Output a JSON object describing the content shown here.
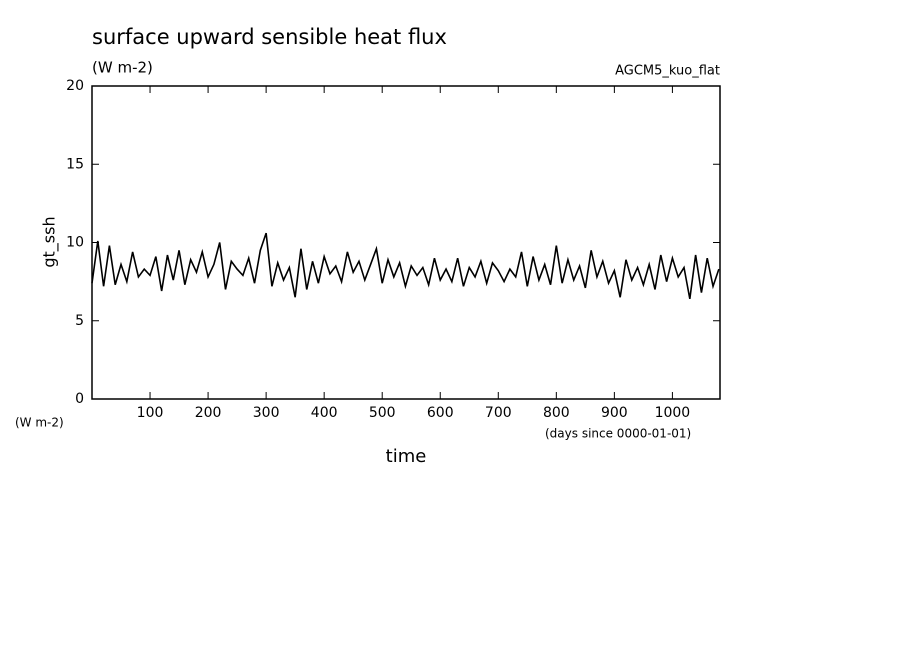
{
  "chart_data": {
    "type": "line",
    "title": "surface upward sensible heat flux",
    "subtitle": "(W m-2)",
    "annotation": "AGCM5_kuo_flat",
    "ylabel": "gt_ssh",
    "yunits": "(W m-2)",
    "xlabel": "time",
    "xunits": "(days since 0000-01-01)",
    "x": [
      0,
      10,
      20,
      30,
      40,
      50,
      60,
      70,
      80,
      90,
      100,
      110,
      120,
      130,
      140,
      150,
      160,
      170,
      180,
      190,
      200,
      210,
      220,
      230,
      240,
      250,
      260,
      270,
      280,
      290,
      300,
      310,
      320,
      330,
      340,
      350,
      360,
      370,
      380,
      390,
      400,
      410,
      420,
      430,
      440,
      450,
      460,
      470,
      480,
      490,
      500,
      510,
      520,
      530,
      540,
      550,
      560,
      570,
      580,
      590,
      600,
      610,
      620,
      630,
      640,
      650,
      660,
      670,
      680,
      690,
      700,
      710,
      720,
      730,
      740,
      750,
      760,
      770,
      780,
      790,
      800,
      810,
      820,
      830,
      840,
      850,
      860,
      870,
      880,
      890,
      900,
      910,
      920,
      930,
      940,
      950,
      960,
      970,
      980,
      990,
      1000,
      1010,
      1020,
      1030,
      1040,
      1050,
      1060,
      1070,
      1080
    ],
    "values": [
      7.4,
      10.1,
      7.2,
      9.8,
      7.3,
      8.6,
      7.5,
      9.4,
      7.8,
      8.3,
      7.9,
      9.1,
      6.9,
      9.2,
      7.6,
      9.5,
      7.3,
      8.9,
      8.1,
      9.4,
      7.8,
      8.6,
      10.0,
      7.0,
      8.8,
      8.3,
      7.9,
      9.0,
      7.4,
      9.5,
      10.6,
      7.2,
      8.7,
      7.6,
      8.4,
      6.5,
      9.6,
      7.0,
      8.8,
      7.4,
      9.1,
      8.0,
      8.5,
      7.5,
      9.4,
      8.1,
      8.8,
      7.6,
      8.6,
      9.6,
      7.4,
      8.9,
      7.8,
      8.7,
      7.2,
      8.5,
      7.9,
      8.4,
      7.3,
      9.0,
      7.6,
      8.3,
      7.5,
      9.0,
      7.2,
      8.4,
      7.8,
      8.8,
      7.4,
      8.7,
      8.2,
      7.5,
      8.3,
      7.8,
      9.4,
      7.2,
      9.1,
      7.6,
      8.6,
      7.3,
      9.8,
      7.4,
      8.9,
      7.6,
      8.5,
      7.1,
      9.5,
      7.8,
      8.8,
      7.4,
      8.2,
      6.5,
      8.9,
      7.6,
      8.4,
      7.3,
      8.6,
      7.0,
      9.2,
      7.5,
      9.0,
      7.8,
      8.4,
      6.4,
      9.2,
      6.8,
      9.0,
      7.2,
      8.3
    ],
    "color": "#000000",
    "xlim": [
      0,
      1082
    ],
    "ylim": [
      0,
      20
    ],
    "xticks": [
      100,
      200,
      300,
      400,
      500,
      600,
      700,
      800,
      900,
      1000
    ],
    "yticks": [
      0,
      5,
      10,
      15,
      20
    ]
  }
}
